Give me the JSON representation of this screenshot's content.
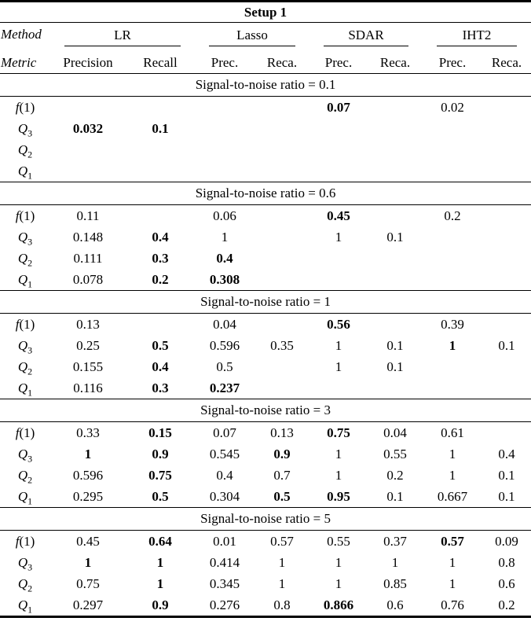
{
  "title": "Setup 1",
  "method_label": "Method",
  "metric_label": "Metric",
  "groups": [
    {
      "name": "LR",
      "metrics": [
        "Precision",
        "Recall"
      ]
    },
    {
      "name": "Lasso",
      "metrics": [
        "Prec.",
        "Reca."
      ]
    },
    {
      "name": "SDAR",
      "metrics": [
        "Prec.",
        "Reca."
      ]
    },
    {
      "name": "IHT2",
      "metrics": [
        "Prec.",
        "Reca."
      ]
    }
  ],
  "sections": [
    {
      "header": "Signal-to-noise ratio = 0.1",
      "rows": [
        {
          "label": {
            "var": "f",
            "sub": "",
            "tail": "(1)"
          },
          "values": [
            "",
            "",
            "",
            "",
            "0.07",
            "",
            "0.02",
            ""
          ],
          "bold": [
            false,
            false,
            false,
            false,
            true,
            false,
            false,
            false
          ]
        },
        {
          "label": {
            "var": "Q",
            "sub": "3",
            "tail": ""
          },
          "values": [
            "0.032",
            "0.1",
            "",
            "",
            "",
            "",
            "",
            ""
          ],
          "bold": [
            true,
            true,
            false,
            false,
            false,
            false,
            false,
            false
          ]
        },
        {
          "label": {
            "var": "Q",
            "sub": "2",
            "tail": ""
          },
          "values": [
            "",
            "",
            "",
            "",
            "",
            "",
            "",
            ""
          ],
          "bold": [
            false,
            false,
            false,
            false,
            false,
            false,
            false,
            false
          ]
        },
        {
          "label": {
            "var": "Q",
            "sub": "1",
            "tail": ""
          },
          "values": [
            "",
            "",
            "",
            "",
            "",
            "",
            "",
            ""
          ],
          "bold": [
            false,
            false,
            false,
            false,
            false,
            false,
            false,
            false
          ]
        }
      ]
    },
    {
      "header": "Signal-to-noise ratio = 0.6",
      "rows": [
        {
          "label": {
            "var": "f",
            "sub": "",
            "tail": "(1)"
          },
          "values": [
            "0.11",
            "",
            "0.06",
            "",
            "0.45",
            "",
            "0.2",
            ""
          ],
          "bold": [
            false,
            false,
            false,
            false,
            true,
            false,
            false,
            false
          ]
        },
        {
          "label": {
            "var": "Q",
            "sub": "3",
            "tail": ""
          },
          "values": [
            "0.148",
            "0.4",
            "1",
            "",
            "1",
            "0.1",
            "",
            ""
          ],
          "bold": [
            false,
            true,
            false,
            false,
            false,
            false,
            false,
            false
          ]
        },
        {
          "label": {
            "var": "Q",
            "sub": "2",
            "tail": ""
          },
          "values": [
            "0.111",
            "0.3",
            "0.4",
            "",
            "",
            "",
            "",
            ""
          ],
          "bold": [
            false,
            true,
            true,
            false,
            false,
            false,
            false,
            false
          ]
        },
        {
          "label": {
            "var": "Q",
            "sub": "1",
            "tail": ""
          },
          "values": [
            "0.078",
            "0.2",
            "0.308",
            "",
            "",
            "",
            "",
            ""
          ],
          "bold": [
            false,
            true,
            true,
            false,
            false,
            false,
            false,
            false
          ]
        }
      ]
    },
    {
      "header": "Signal-to-noise ratio = 1",
      "rows": [
        {
          "label": {
            "var": "f",
            "sub": "",
            "tail": "(1)"
          },
          "values": [
            "0.13",
            "",
            "0.04",
            "",
            "0.56",
            "",
            "0.39",
            ""
          ],
          "bold": [
            false,
            false,
            false,
            false,
            true,
            false,
            false,
            false
          ]
        },
        {
          "label": {
            "var": "Q",
            "sub": "3",
            "tail": ""
          },
          "values": [
            "0.25",
            "0.5",
            "0.596",
            "0.35",
            "1",
            "0.1",
            "1",
            "0.1"
          ],
          "bold": [
            false,
            true,
            false,
            false,
            false,
            false,
            true,
            false
          ]
        },
        {
          "label": {
            "var": "Q",
            "sub": "2",
            "tail": ""
          },
          "values": [
            "0.155",
            "0.4",
            "0.5",
            "",
            "1",
            "0.1",
            "",
            ""
          ],
          "bold": [
            false,
            true,
            false,
            false,
            false,
            false,
            false,
            false
          ]
        },
        {
          "label": {
            "var": "Q",
            "sub": "1",
            "tail": ""
          },
          "values": [
            "0.116",
            "0.3",
            "0.237",
            "",
            "",
            "",
            "",
            ""
          ],
          "bold": [
            false,
            true,
            true,
            false,
            false,
            false,
            false,
            false
          ]
        }
      ]
    },
    {
      "header": "Signal-to-noise ratio = 3",
      "rows": [
        {
          "label": {
            "var": "f",
            "sub": "",
            "tail": "(1)"
          },
          "values": [
            "0.33",
            "0.15",
            "0.07",
            "0.13",
            "0.75",
            "0.04",
            "0.61",
            ""
          ],
          "bold": [
            false,
            true,
            false,
            false,
            true,
            false,
            false,
            false
          ]
        },
        {
          "label": {
            "var": "Q",
            "sub": "3",
            "tail": ""
          },
          "values": [
            "1",
            "0.9",
            "0.545",
            "0.9",
            "1",
            "0.55",
            "1",
            "0.4"
          ],
          "bold": [
            true,
            true,
            false,
            true,
            false,
            false,
            false,
            false
          ]
        },
        {
          "label": {
            "var": "Q",
            "sub": "2",
            "tail": ""
          },
          "values": [
            "0.596",
            "0.75",
            "0.4",
            "0.7",
            "1",
            "0.2",
            "1",
            "0.1"
          ],
          "bold": [
            false,
            true,
            false,
            false,
            false,
            false,
            false,
            false
          ]
        },
        {
          "label": {
            "var": "Q",
            "sub": "1",
            "tail": ""
          },
          "values": [
            "0.295",
            "0.5",
            "0.304",
            "0.5",
            "0.95",
            "0.1",
            "0.667",
            "0.1"
          ],
          "bold": [
            false,
            true,
            false,
            true,
            true,
            false,
            false,
            false
          ]
        }
      ]
    },
    {
      "header": "Signal-to-noise ratio = 5",
      "rows": [
        {
          "label": {
            "var": "f",
            "sub": "",
            "tail": "(1)"
          },
          "values": [
            "0.45",
            "0.64",
            "0.01",
            "0.57",
            "0.55",
            "0.37",
            "0.57",
            "0.09"
          ],
          "bold": [
            false,
            true,
            false,
            false,
            false,
            false,
            true,
            false
          ]
        },
        {
          "label": {
            "var": "Q",
            "sub": "3",
            "tail": ""
          },
          "values": [
            "1",
            "1",
            "0.414",
            "1",
            "1",
            "1",
            "1",
            "0.8"
          ],
          "bold": [
            true,
            true,
            false,
            false,
            false,
            false,
            false,
            false
          ]
        },
        {
          "label": {
            "var": "Q",
            "sub": "2",
            "tail": ""
          },
          "values": [
            "0.75",
            "1",
            "0.345",
            "1",
            "1",
            "0.85",
            "1",
            "0.6"
          ],
          "bold": [
            false,
            true,
            false,
            false,
            false,
            false,
            false,
            false
          ]
        },
        {
          "label": {
            "var": "Q",
            "sub": "1",
            "tail": ""
          },
          "values": [
            "0.297",
            "0.9",
            "0.276",
            "0.8",
            "0.866",
            "0.6",
            "0.76",
            "0.2"
          ],
          "bold": [
            false,
            true,
            false,
            false,
            true,
            false,
            false,
            false
          ]
        }
      ]
    }
  ]
}
